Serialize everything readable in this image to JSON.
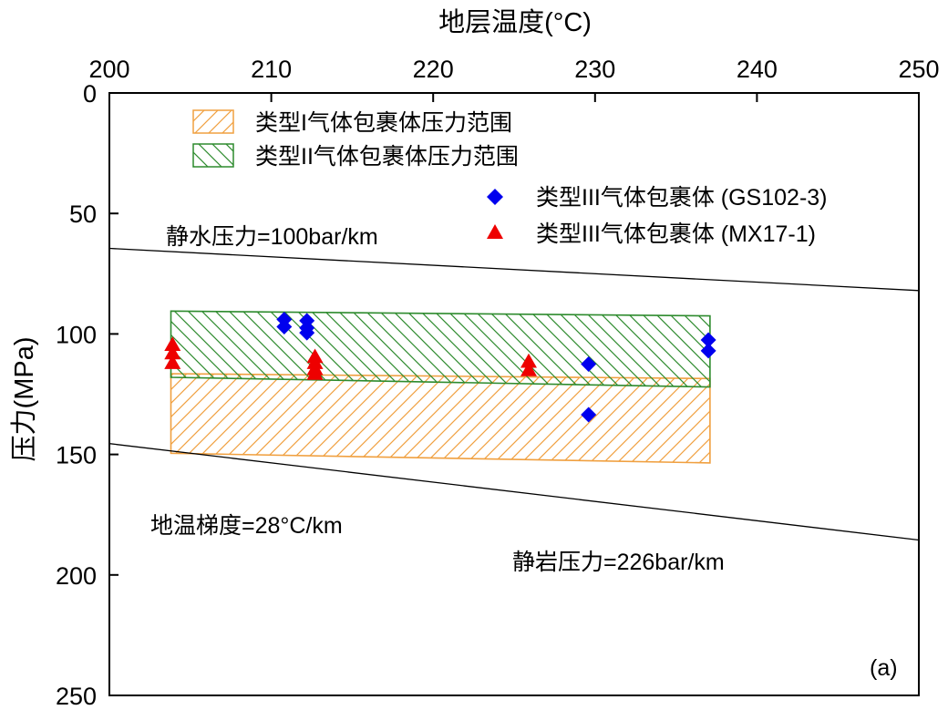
{
  "chart_data": {
    "type": "scatter",
    "panel_label": "(a)",
    "x_axis": {
      "label": "地层温度(°C)",
      "position": "top",
      "range": [
        200,
        250
      ],
      "ticks": [
        200,
        210,
        220,
        230,
        240,
        250
      ],
      "tick_labels": [
        "200",
        "210",
        "220",
        "230",
        "240",
        "250"
      ]
    },
    "y_axis": {
      "label": "压力(MPa)",
      "range": [
        0,
        250
      ],
      "inverted": true,
      "ticks": [
        0,
        50,
        100,
        150,
        200,
        250
      ],
      "tick_labels": [
        "0",
        "50",
        "100",
        "150",
        "200",
        "250"
      ]
    },
    "grid": false,
    "legend": {
      "placement": "top-center",
      "entries": [
        {
          "label": "类型I气体包裹体压力范围",
          "kind": "hatched-box",
          "color": "#f0a040"
        },
        {
          "label": "类型II气体包裹体压力范围",
          "kind": "hatched-box",
          "color": "#2e8b2e"
        },
        {
          "label": "类型III气体包裹体 (GS102-3)",
          "kind": "diamond",
          "color": "#0000ee"
        },
        {
          "label": "类型III气体包裹体 (MX17-1)",
          "kind": "triangle",
          "color": "#ee0000"
        }
      ]
    },
    "ranges": [
      {
        "name": "类型I气体包裹体压力范围",
        "color": "#f0a040",
        "hatch": "forward",
        "corners": [
          [
            203.8,
            116.5
          ],
          [
            237.1,
            118.5
          ],
          [
            237.1,
            153.5
          ],
          [
            203.8,
            149.5
          ]
        ]
      },
      {
        "name": "类型II气体包裹体压力范围",
        "color": "#2e8b2e",
        "hatch": "back",
        "corners": [
          [
            203.8,
            90.5
          ],
          [
            237.1,
            92.5
          ],
          [
            237.1,
            122.0
          ],
          [
            203.8,
            118.0
          ]
        ]
      }
    ],
    "series": [
      {
        "name": "类型III气体包裹体 (GS102-3)",
        "marker": "diamond",
        "color": "#0000ee",
        "x": [
          210.8,
          210.8,
          212.2,
          212.2,
          212.2,
          229.6,
          229.6,
          237.0,
          237.0
        ],
        "y": [
          94.0,
          97.0,
          94.5,
          97.5,
          99.5,
          112.5,
          133.5,
          102.5,
          107.0
        ]
      },
      {
        "name": "类型III气体包裹体 (MX17-1)",
        "marker": "triangle",
        "color": "#ee0000",
        "x": [
          203.9,
          203.9,
          203.9,
          212.7,
          212.7,
          212.7,
          212.7,
          225.9,
          225.9
        ],
        "y": [
          104.5,
          108.0,
          112.0,
          109.5,
          112.0,
          114.5,
          116.5,
          111.5,
          115.0
        ]
      }
    ],
    "reference_lines": [
      {
        "label": "静水压力=100bar/km",
        "x": [
          200,
          250
        ],
        "y": [
          64.5,
          82.0
        ]
      },
      {
        "label": "静岩压力=226bar/km",
        "x": [
          200,
          250
        ],
        "y": [
          145.5,
          185.5
        ]
      }
    ],
    "annotations": [
      {
        "text": "地温梯度=28°C/km"
      }
    ]
  }
}
